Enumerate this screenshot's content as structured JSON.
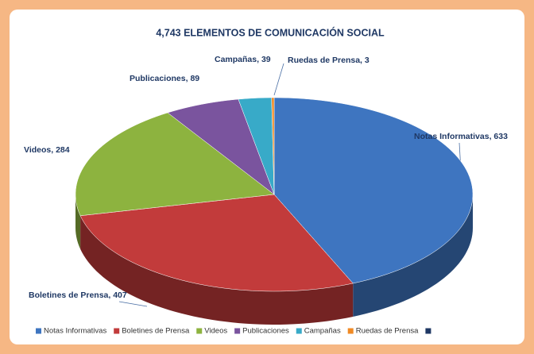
{
  "chart_data": {
    "type": "pie3d",
    "title": "4,743 ELEMENTOS DE COMUNICACIÓN SOCIAL",
    "categories": [
      "Notas Informativas",
      "Boletines de Prensa",
      "Videos",
      "Publicaciones",
      "Campañas",
      "Ruedas de Prensa"
    ],
    "values": [
      633,
      407,
      284,
      89,
      39,
      3
    ],
    "value_labels": [
      "Notas Informativas, 633",
      "Boletines de Prensa, 407",
      "Videos, 284",
      "Publicaciones, 89",
      "Campañas, 39",
      "Ruedas de Prensa, 3"
    ],
    "colors": [
      "#3e75c0",
      "#c23b3b",
      "#8db33f",
      "#7a549e",
      "#38aac8",
      "#f08a24"
    ],
    "legend": "bottom"
  }
}
